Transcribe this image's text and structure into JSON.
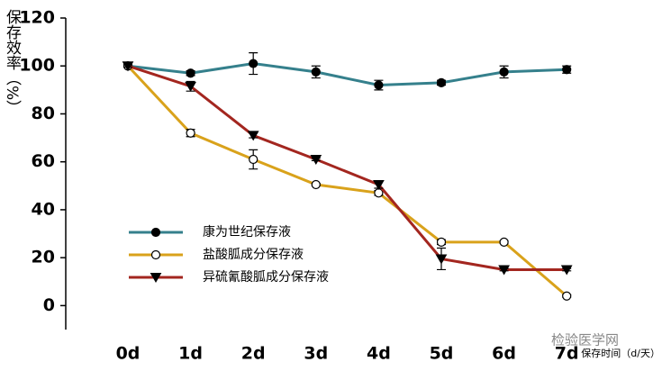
{
  "chart_data": {
    "type": "line",
    "categories": [
      "0d",
      "1d",
      "2d",
      "3d",
      "4d",
      "5d",
      "6d",
      "7d"
    ],
    "series": [
      {
        "name": "康为世纪保存液",
        "color": "#35808c",
        "marker": "circle",
        "values": [
          100,
          97,
          101,
          97.5,
          92,
          93,
          97.5,
          98.5
        ],
        "errors": [
          0.5,
          1,
          4.5,
          2.5,
          2,
          1,
          2.5,
          1.5
        ]
      },
      {
        "name": "盐酸胍成分保存液",
        "color": "#d9a21b",
        "marker": "open-circle",
        "values": [
          100,
          72,
          61,
          50.5,
          47,
          26.5,
          26.5,
          4
        ],
        "errors": [
          0.5,
          1.5,
          4,
          0.5,
          1,
          1,
          0.5,
          0.5
        ]
      },
      {
        "name": "异硫氰酸胍成分保存液",
        "color": "#a3261f",
        "marker": "triangle-down",
        "values": [
          100,
          91.5,
          71,
          61,
          50.5,
          19.5,
          15,
          15
        ],
        "errors": [
          0.5,
          2,
          1,
          0.5,
          1.5,
          4.5,
          0.5,
          0.5
        ]
      }
    ],
    "ylabel": "保存效率（%）",
    "xlabel": "保存时间（d/天）",
    "watermark": "检验医学网",
    "ylim": [
      -10,
      120
    ],
    "yticks": [
      0,
      20,
      40,
      60,
      80,
      100,
      120
    ],
    "grid": false
  }
}
